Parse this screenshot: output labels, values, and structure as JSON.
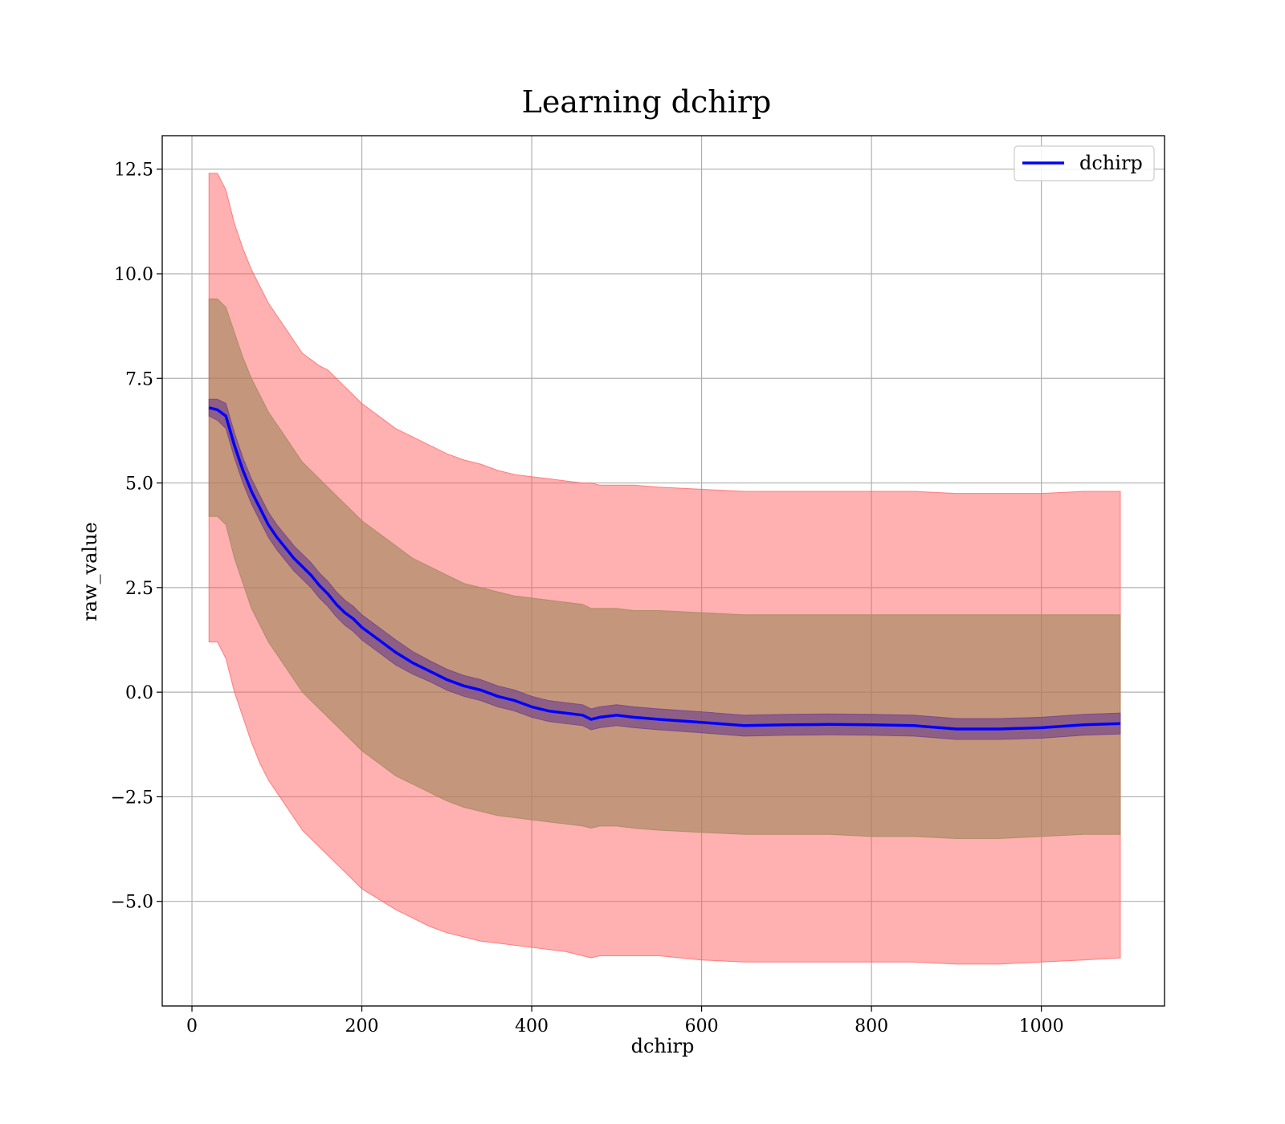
{
  "chart_data": {
    "type": "line",
    "title": "Learning dchirp",
    "xlabel": "dchirp",
    "ylabel": "raw_value",
    "xlim": [
      -35,
      1145
    ],
    "ylim": [
      -7.5,
      13.3
    ],
    "xticks": [
      0,
      200,
      400,
      600,
      800,
      1000
    ],
    "yticks": [
      -5.0,
      -2.5,
      0.0,
      2.5,
      5.0,
      7.5,
      10.0,
      12.5
    ],
    "xtick_labels": [
      "0",
      "200",
      "400",
      "600",
      "800",
      "1000"
    ],
    "ytick_labels": [
      "−5.0",
      "−2.5",
      "0.0",
      "2.5",
      "5.0",
      "7.5",
      "10.0",
      "12.5"
    ],
    "grid": true,
    "legend": {
      "placement": "top-right",
      "entries": [
        "dchirp"
      ]
    },
    "colors": {
      "line": "#0000ff",
      "outer_band": "#ff5a5a",
      "middle_band": "#a0865a",
      "inner_band": "#6a3a8a"
    },
    "x": [
      20,
      30,
      40,
      50,
      60,
      70,
      80,
      90,
      100,
      110,
      120,
      130,
      140,
      150,
      160,
      170,
      180,
      190,
      200,
      220,
      240,
      260,
      280,
      300,
      320,
      340,
      360,
      380,
      400,
      420,
      440,
      460,
      470,
      480,
      500,
      520,
      550,
      600,
      650,
      700,
      750,
      800,
      850,
      900,
      950,
      1000,
      1050,
      1093
    ],
    "series": [
      {
        "name": "dchirp",
        "values": [
          6.8,
          6.75,
          6.6,
          5.9,
          5.3,
          4.8,
          4.4,
          4.0,
          3.7,
          3.45,
          3.2,
          3.0,
          2.8,
          2.55,
          2.35,
          2.1,
          1.9,
          1.75,
          1.55,
          1.25,
          0.95,
          0.7,
          0.5,
          0.3,
          0.15,
          0.05,
          -0.1,
          -0.2,
          -0.35,
          -0.45,
          -0.5,
          -0.55,
          -0.65,
          -0.6,
          -0.55,
          -0.6,
          -0.65,
          -0.72,
          -0.8,
          -0.78,
          -0.77,
          -0.78,
          -0.8,
          -0.88,
          -0.88,
          -0.85,
          -0.78,
          -0.75
        ]
      }
    ],
    "bands": [
      {
        "name": "outer",
        "upper": [
          12.4,
          12.4,
          12.0,
          11.2,
          10.6,
          10.1,
          9.7,
          9.3,
          9.0,
          8.7,
          8.4,
          8.1,
          7.95,
          7.8,
          7.7,
          7.5,
          7.3,
          7.1,
          6.9,
          6.6,
          6.3,
          6.1,
          5.9,
          5.7,
          5.55,
          5.45,
          5.3,
          5.2,
          5.15,
          5.1,
          5.05,
          5.0,
          5.0,
          4.95,
          4.95,
          4.95,
          4.9,
          4.85,
          4.8,
          4.8,
          4.8,
          4.8,
          4.8,
          4.75,
          4.75,
          4.75,
          4.8,
          4.8
        ],
        "lower": [
          1.2,
          1.2,
          0.8,
          0.0,
          -0.6,
          -1.2,
          -1.7,
          -2.1,
          -2.4,
          -2.7,
          -3.0,
          -3.3,
          -3.5,
          -3.7,
          -3.9,
          -4.1,
          -4.3,
          -4.5,
          -4.7,
          -4.95,
          -5.2,
          -5.4,
          -5.6,
          -5.75,
          -5.85,
          -5.95,
          -6.0,
          -6.05,
          -6.1,
          -6.15,
          -6.2,
          -6.3,
          -6.35,
          -6.3,
          -6.3,
          -6.3,
          -6.3,
          -6.4,
          -6.45,
          -6.45,
          -6.45,
          -6.45,
          -6.45,
          -6.5,
          -6.5,
          -6.45,
          -6.4,
          -6.35
        ]
      },
      {
        "name": "middle",
        "upper": [
          9.4,
          9.4,
          9.2,
          8.6,
          8.0,
          7.5,
          7.1,
          6.7,
          6.4,
          6.1,
          5.8,
          5.5,
          5.3,
          5.1,
          4.9,
          4.7,
          4.5,
          4.3,
          4.1,
          3.8,
          3.5,
          3.2,
          3.0,
          2.8,
          2.6,
          2.5,
          2.4,
          2.3,
          2.25,
          2.2,
          2.15,
          2.1,
          2.0,
          2.0,
          2.0,
          1.95,
          1.95,
          1.9,
          1.85,
          1.85,
          1.85,
          1.85,
          1.85,
          1.85,
          1.85,
          1.85,
          1.85,
          1.85
        ],
        "lower": [
          4.2,
          4.2,
          4.0,
          3.2,
          2.6,
          2.0,
          1.6,
          1.2,
          0.9,
          0.6,
          0.3,
          0.0,
          -0.2,
          -0.4,
          -0.6,
          -0.8,
          -1.0,
          -1.2,
          -1.4,
          -1.7,
          -2.0,
          -2.2,
          -2.4,
          -2.6,
          -2.75,
          -2.85,
          -2.95,
          -3.0,
          -3.05,
          -3.1,
          -3.15,
          -3.2,
          -3.25,
          -3.2,
          -3.2,
          -3.25,
          -3.3,
          -3.35,
          -3.4,
          -3.4,
          -3.4,
          -3.45,
          -3.45,
          -3.5,
          -3.5,
          -3.45,
          -3.4,
          -3.4
        ]
      },
      {
        "name": "inner",
        "upper": [
          7.0,
          7.0,
          6.9,
          6.2,
          5.6,
          5.1,
          4.7,
          4.3,
          4.0,
          3.75,
          3.5,
          3.3,
          3.1,
          2.85,
          2.65,
          2.4,
          2.2,
          2.05,
          1.85,
          1.55,
          1.25,
          0.97,
          0.75,
          0.55,
          0.4,
          0.3,
          0.15,
          0.05,
          -0.1,
          -0.2,
          -0.25,
          -0.3,
          -0.4,
          -0.35,
          -0.3,
          -0.35,
          -0.4,
          -0.47,
          -0.55,
          -0.53,
          -0.52,
          -0.53,
          -0.55,
          -0.63,
          -0.63,
          -0.6,
          -0.53,
          -0.5
        ],
        "lower": [
          6.6,
          6.5,
          6.3,
          5.6,
          5.0,
          4.5,
          4.1,
          3.7,
          3.4,
          3.15,
          2.9,
          2.7,
          2.5,
          2.25,
          2.05,
          1.8,
          1.6,
          1.45,
          1.25,
          0.95,
          0.65,
          0.43,
          0.25,
          0.05,
          -0.1,
          -0.2,
          -0.35,
          -0.45,
          -0.6,
          -0.7,
          -0.75,
          -0.8,
          -0.9,
          -0.85,
          -0.8,
          -0.85,
          -0.9,
          -0.97,
          -1.05,
          -1.03,
          -1.02,
          -1.03,
          -1.05,
          -1.13,
          -1.13,
          -1.1,
          -1.03,
          -1.0
        ]
      }
    ]
  }
}
